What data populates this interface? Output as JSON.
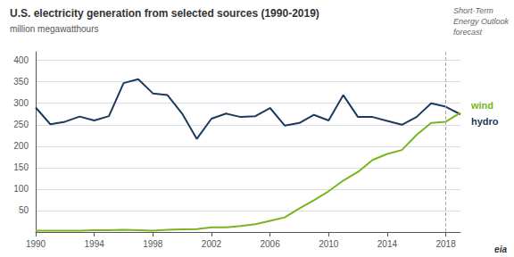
{
  "chart_data": {
    "type": "line",
    "title": "U.S. electricity generation from selected sources (1990-2019)",
    "ylabel": "million megawatthours",
    "x": [
      1990,
      1991,
      1992,
      1993,
      1994,
      1995,
      1996,
      1997,
      1998,
      1999,
      2000,
      2001,
      2002,
      2003,
      2004,
      2005,
      2006,
      2007,
      2008,
      2009,
      2010,
      2011,
      2012,
      2013,
      2014,
      2015,
      2016,
      2017,
      2018,
      2019
    ],
    "series": [
      {
        "name": "hydro",
        "color": "#1b3a5c",
        "values": [
          290,
          251,
          257,
          269,
          260,
          270,
          347,
          356,
          323,
          319,
          276,
          217,
          264,
          276,
          268,
          270,
          289,
          248,
          254,
          273,
          260,
          319,
          268,
          268,
          259,
          250,
          268,
          300,
          292,
          274
        ]
      },
      {
        "name": "wind",
        "color": "#7ab520",
        "values": [
          3,
          3,
          3,
          3,
          4,
          4,
          5,
          4,
          3,
          5,
          6,
          7,
          11,
          11,
          14,
          18,
          26,
          34,
          55,
          74,
          95,
          120,
          140,
          168,
          182,
          191,
          226,
          254,
          257,
          278
        ]
      }
    ],
    "forecast_year": 2018,
    "forecast_label": [
      "Short-Term",
      "Energy Outlook",
      "forecast"
    ],
    "footer": "eia",
    "xlim": [
      1990,
      2019
    ],
    "xticks": [
      1990,
      1994,
      1998,
      2002,
      2006,
      2010,
      2014,
      2018
    ],
    "ylim": [
      0,
      420
    ],
    "yticks": [
      50,
      100,
      150,
      200,
      250,
      300,
      350,
      400
    ],
    "grid": true
  }
}
